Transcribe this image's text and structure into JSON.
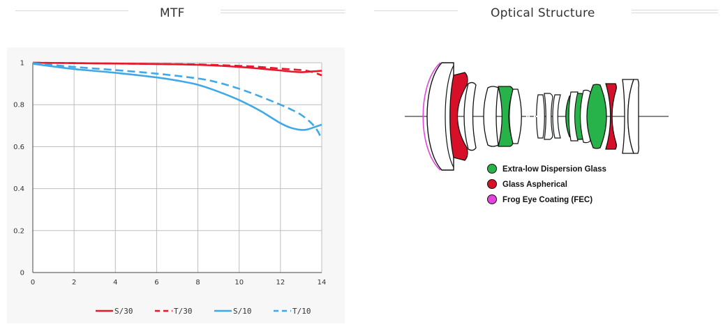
{
  "mtf_title": "MTF",
  "optical_title": "Optical Structure",
  "colors": {
    "red": "#e8182c",
    "blue": "#3fa9e8",
    "green": "#27b24a",
    "aspherical": "#d7102a",
    "fec": "#e444dc"
  },
  "chart_data": {
    "type": "line",
    "title": "MTF",
    "xlabel": "",
    "ylabel": "",
    "xlim": [
      0,
      14
    ],
    "ylim": [
      0,
      1
    ],
    "xticks": [
      "0",
      "2",
      "4",
      "6",
      "8",
      "10",
      "12",
      "14"
    ],
    "yticks": [
      "0",
      "0.2",
      "0.4",
      "0.6",
      "0.8",
      "1"
    ],
    "grid": true,
    "legend_position": "bottom",
    "series": [
      {
        "name": "S/30",
        "color": "#e8182c",
        "dash": "solid",
        "x": [
          0,
          2,
          4,
          6,
          8,
          10,
          11,
          12,
          12.5,
          13,
          13.5,
          14
        ],
        "y": [
          1.0,
          0.998,
          0.996,
          0.994,
          0.99,
          0.98,
          0.972,
          0.963,
          0.958,
          0.955,
          0.958,
          0.962
        ]
      },
      {
        "name": "T/30",
        "color": "#e8182c",
        "dash": "dashed",
        "x": [
          0,
          2,
          4,
          6,
          8,
          10,
          11,
          12,
          13,
          13.5,
          14
        ],
        "y": [
          1.0,
          0.998,
          0.996,
          0.994,
          0.992,
          0.985,
          0.98,
          0.972,
          0.965,
          0.957,
          0.94
        ]
      },
      {
        "name": "S/10",
        "color": "#3fa9e8",
        "dash": "solid",
        "x": [
          0,
          1,
          2,
          4,
          6,
          7,
          8,
          9,
          10,
          11,
          11.5,
          12,
          12.5,
          13,
          13.3,
          13.7,
          14
        ],
        "y": [
          0.995,
          0.982,
          0.97,
          0.952,
          0.93,
          0.915,
          0.895,
          0.862,
          0.822,
          0.772,
          0.742,
          0.712,
          0.69,
          0.68,
          0.682,
          0.695,
          0.705
        ]
      },
      {
        "name": "T/10",
        "color": "#3fa9e8",
        "dash": "dashed",
        "x": [
          0,
          2,
          4,
          6,
          8,
          9,
          10,
          11,
          12,
          12.5,
          13,
          13.5,
          13.8,
          14
        ],
        "y": [
          0.998,
          0.98,
          0.965,
          0.948,
          0.925,
          0.905,
          0.876,
          0.84,
          0.8,
          0.778,
          0.752,
          0.712,
          0.675,
          0.635
        ]
      }
    ]
  },
  "legend": [
    {
      "label": "Extra-low Dispersion Glass",
      "color": "#27b24a"
    },
    {
      "label": "Glass Aspherical",
      "color": "#d7102a"
    },
    {
      "label": "Frog Eye Coating (FEC)",
      "color": "#e444dc"
    }
  ]
}
